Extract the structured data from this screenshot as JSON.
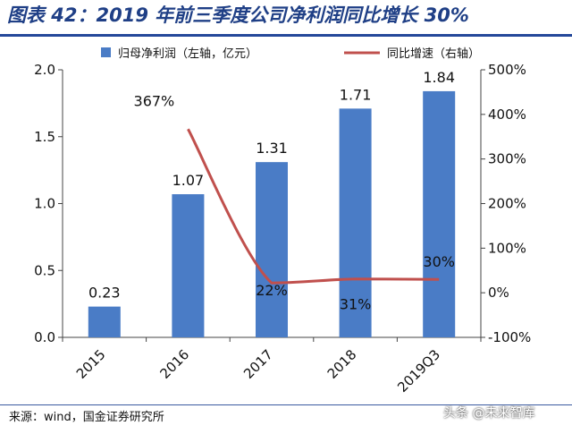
{
  "title": "图表 42：2019 年前三季度公司净利润同比增长 30%",
  "source": "来源：wind，国金证券研究所",
  "watermark": "头条 @未来智库",
  "chart_data": {
    "type": "bar+line",
    "categories": [
      "2015",
      "2016",
      "2017",
      "2018",
      "2019Q3"
    ],
    "series": [
      {
        "name": "归母净利润（左轴，亿元）",
        "type": "bar",
        "axis": "left",
        "values": [
          0.23,
          1.07,
          1.31,
          1.71,
          1.84
        ],
        "labels": [
          "0.23",
          "1.07",
          "1.31",
          "1.71",
          "1.84"
        ],
        "color": "#4a7cc6"
      },
      {
        "name": "同比增速（右轴）",
        "type": "line",
        "axis": "right",
        "values": [
          null,
          367,
          22,
          31,
          30
        ],
        "labels": [
          "",
          "367%",
          "22%",
          "31%",
          "30%"
        ],
        "color": "#c0504d"
      }
    ],
    "y_left": {
      "min": 0.0,
      "max": 2.0,
      "ticks": [
        "0.0",
        "0.5",
        "1.0",
        "1.5",
        "2.0"
      ]
    },
    "y_right": {
      "min": -100,
      "max": 500,
      "ticks": [
        "-100%",
        "0%",
        "100%",
        "200%",
        "300%",
        "400%",
        "500%"
      ]
    },
    "legend_position": "top",
    "grid": false
  }
}
